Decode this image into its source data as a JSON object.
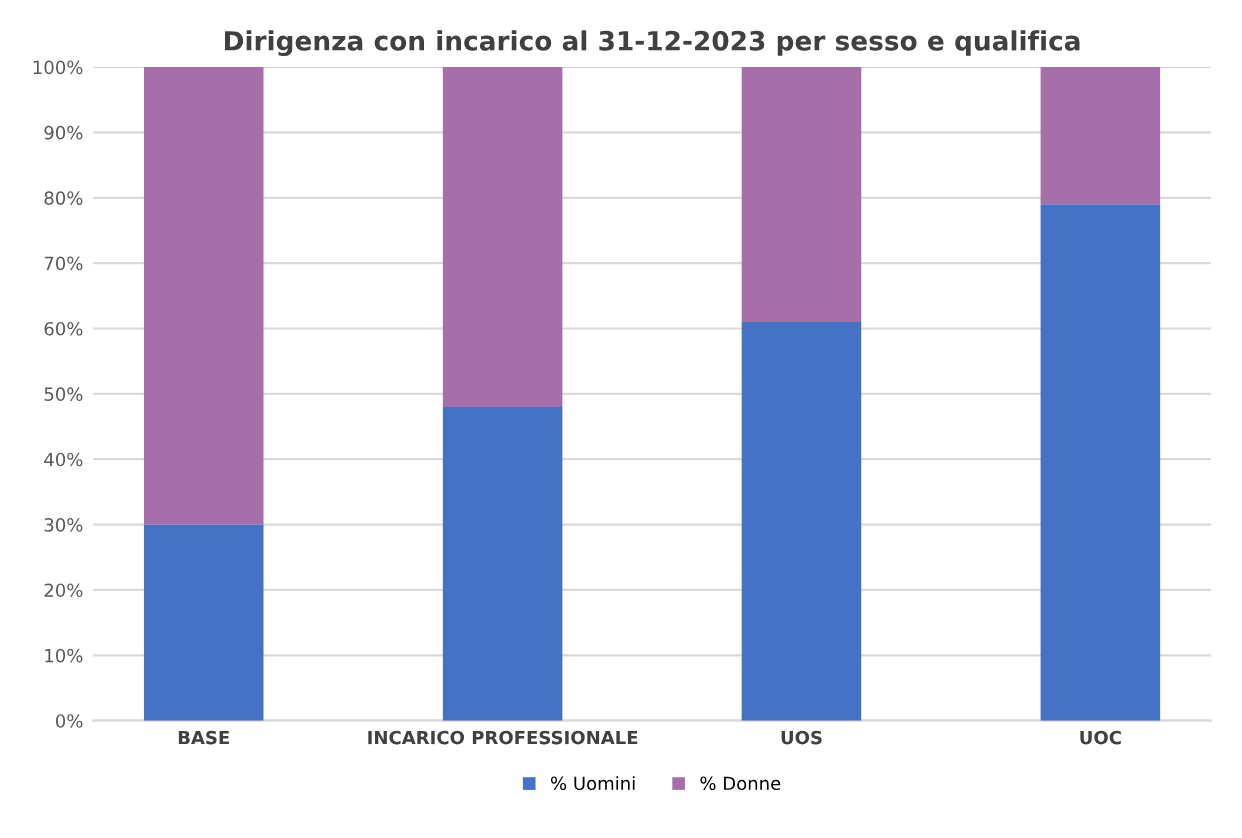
{
  "chart_data": {
    "type": "bar",
    "stacked": true,
    "title": "Dirigenza con incarico al 31-12-2023 per sesso e qualifica",
    "categories": [
      "BASE",
      "INCARICO PROFESSIONALE",
      "UOS",
      "UOC"
    ],
    "series": [
      {
        "name": "% Uomini",
        "color": "#4472c4",
        "values": [
          30,
          48,
          61,
          79
        ]
      },
      {
        "name": "% Donne",
        "color": "#a66fa9",
        "values": [
          70,
          52,
          39,
          21
        ]
      }
    ],
    "ylim": [
      0,
      100
    ],
    "yticks": [
      {
        "value": 0,
        "label": "0%"
      },
      {
        "value": 10,
        "label": "10%"
      },
      {
        "value": 20,
        "label": "20%"
      },
      {
        "value": 30,
        "label": "30%"
      },
      {
        "value": 40,
        "label": "40%"
      },
      {
        "value": 50,
        "label": "50%"
      },
      {
        "value": 60,
        "label": "60%"
      },
      {
        "value": 70,
        "label": "70%"
      },
      {
        "value": 80,
        "label": "80%"
      },
      {
        "value": 90,
        "label": "90%"
      },
      {
        "value": 100,
        "label": "100%"
      }
    ],
    "grid": "y",
    "legend": "bottom"
  }
}
